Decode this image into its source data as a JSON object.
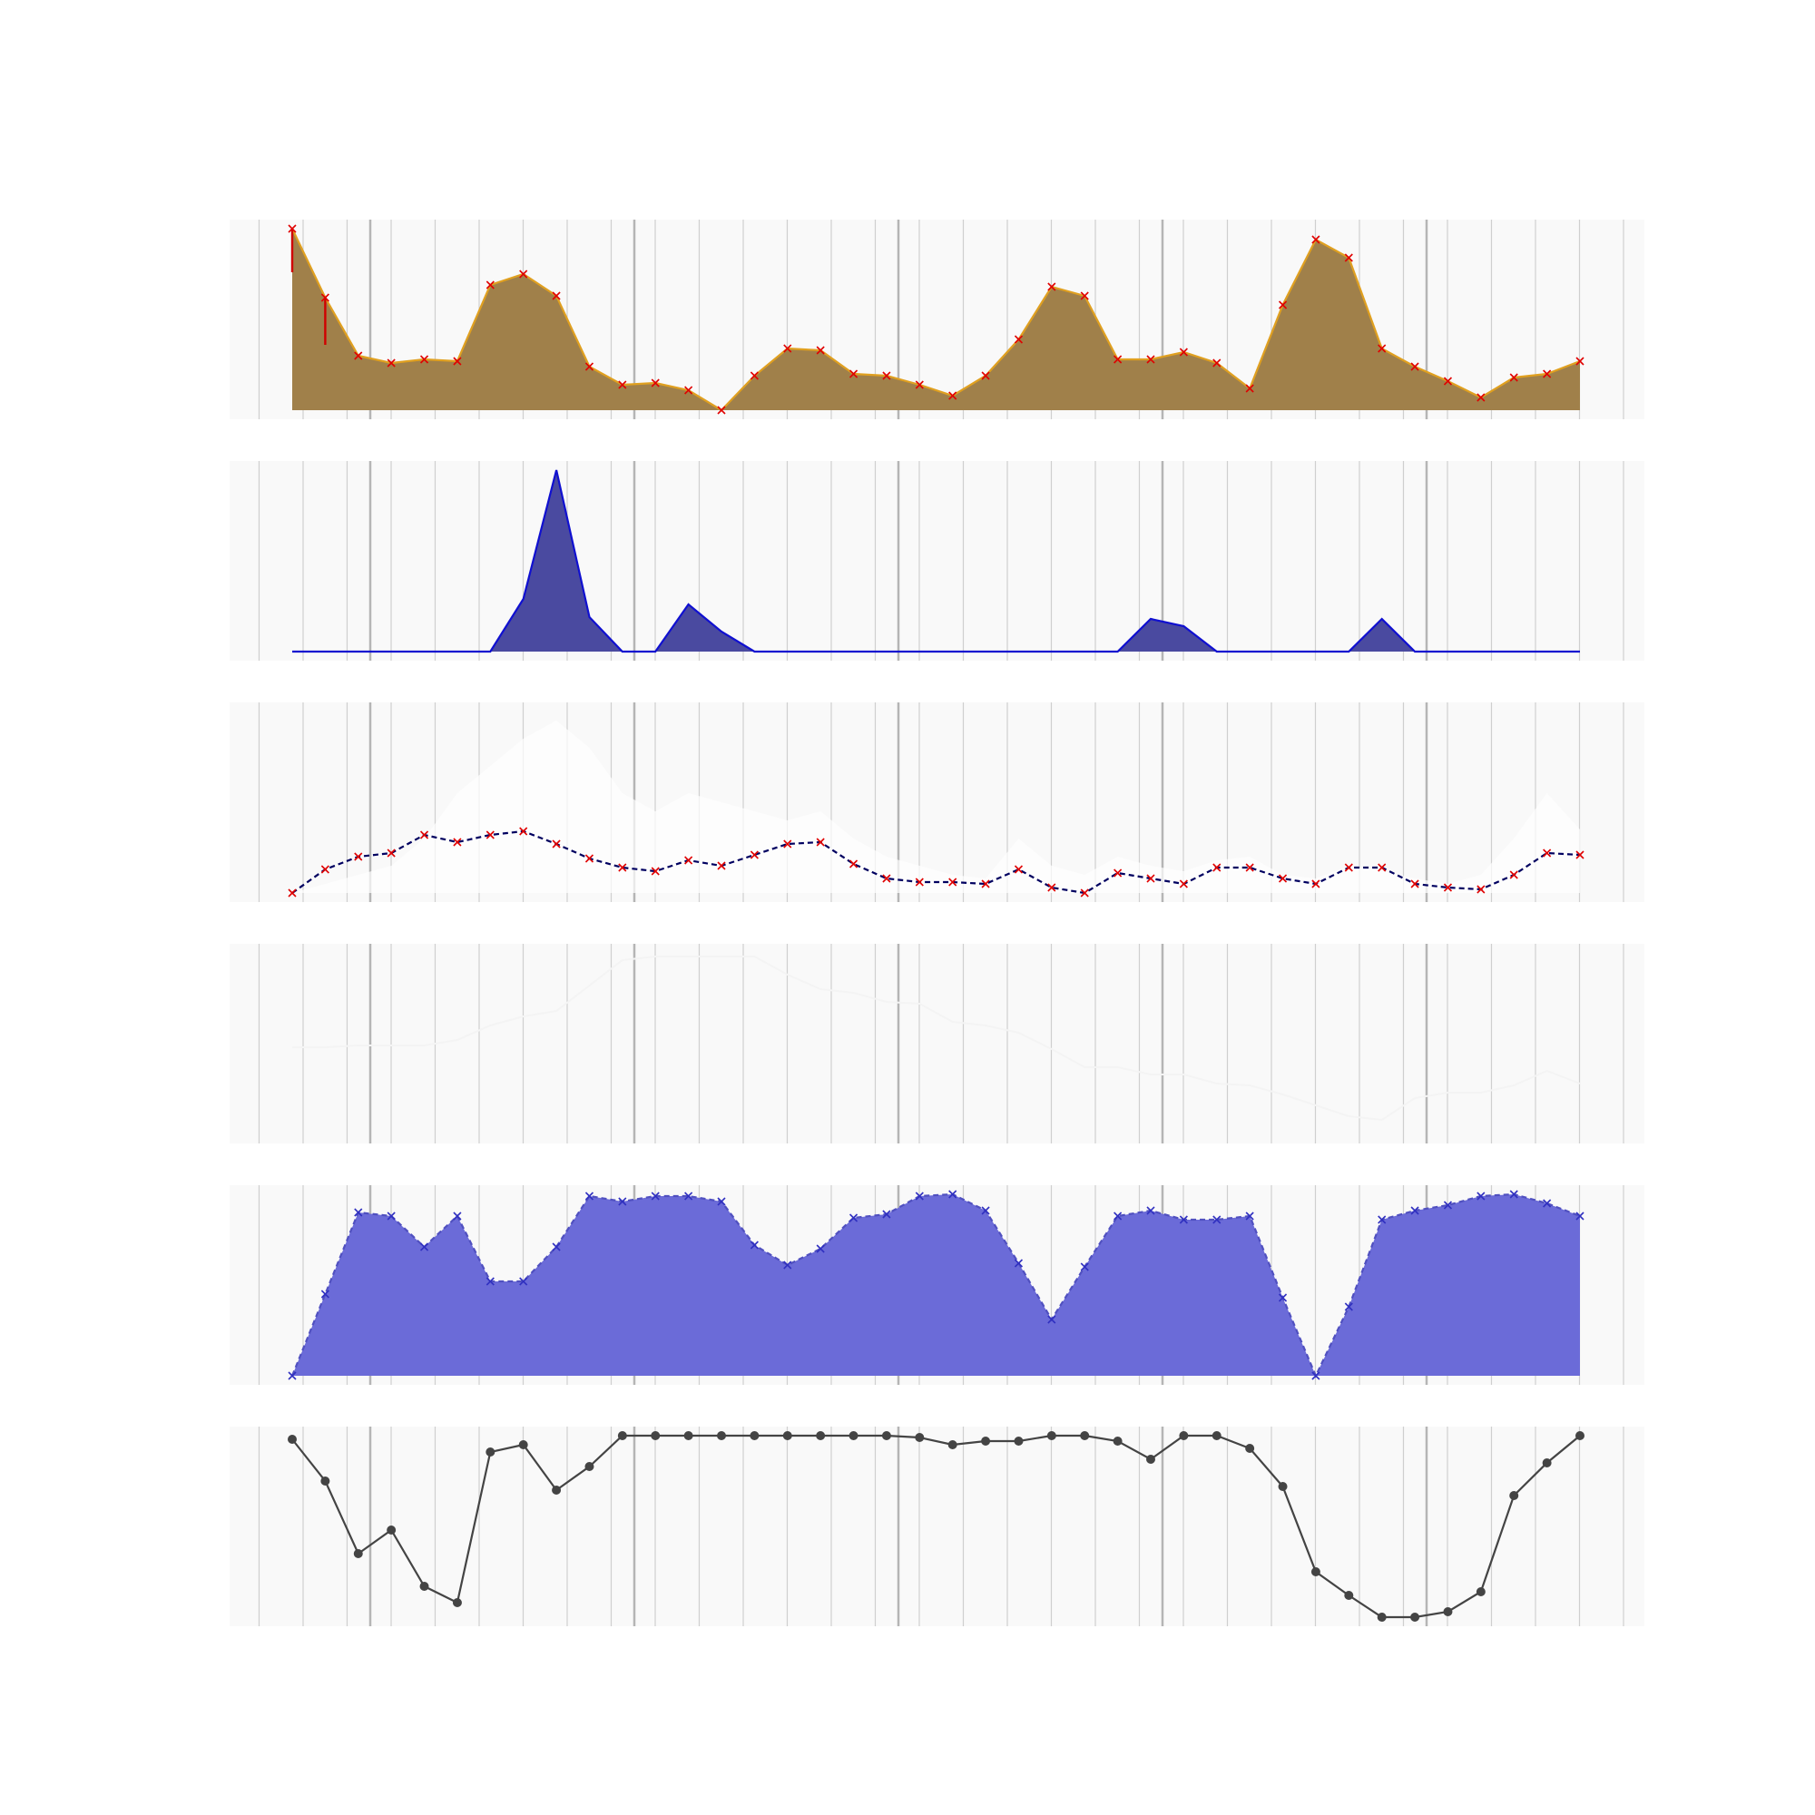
{
  "chart_data": [
    {
      "type": "area",
      "fill": "#a0804a",
      "line_color": "#e0a020",
      "marker_color": "#e00000",
      "marker": "x",
      "grid": true,
      "ylim": [
        0,
        1
      ],
      "error_bars": [
        {
          "index": 0,
          "low": 0.76,
          "high": 1.0
        },
        {
          "index": 1,
          "low": 0.36,
          "high": 0.62
        }
      ],
      "values": [
        1.0,
        0.62,
        0.3,
        0.26,
        0.28,
        0.27,
        0.69,
        0.75,
        0.63,
        0.24,
        0.14,
        0.15,
        0.11,
        0.0,
        0.19,
        0.34,
        0.33,
        0.2,
        0.19,
        0.14,
        0.08,
        0.19,
        0.39,
        0.68,
        0.63,
        0.28,
        0.28,
        0.32,
        0.26,
        0.12,
        0.58,
        0.94,
        0.84,
        0.34,
        0.24,
        0.16,
        0.07,
        0.18,
        0.2,
        0.27
      ]
    },
    {
      "type": "area",
      "fill": "#4a4aa0",
      "line_color": "#1010d0",
      "grid": true,
      "ylim": [
        0,
        1
      ],
      "values": [
        0,
        0,
        0,
        0,
        0,
        0,
        0,
        0.29,
        1.0,
        0.19,
        0,
        0,
        0.26,
        0.11,
        0,
        0,
        0,
        0,
        0,
        0,
        0,
        0,
        0,
        0,
        0,
        0,
        0.18,
        0.14,
        0,
        0,
        0,
        0,
        0,
        0.18,
        0,
        0,
        0,
        0,
        0,
        0
      ]
    },
    {
      "type": "line",
      "line_color": "#000060",
      "line_style": "dashed",
      "marker_color": "#e00000",
      "marker": "x",
      "grid": true,
      "ylim": [
        0,
        1
      ],
      "values": [
        0.0,
        0.13,
        0.2,
        0.22,
        0.32,
        0.28,
        0.32,
        0.34,
        0.27,
        0.19,
        0.14,
        0.12,
        0.18,
        0.15,
        0.21,
        0.27,
        0.28,
        0.16,
        0.08,
        0.06,
        0.06,
        0.05,
        0.13,
        0.03,
        0.0,
        0.11,
        0.08,
        0.05,
        0.14,
        0.14,
        0.08,
        0.05,
        0.14,
        0.14,
        0.05,
        0.03,
        0.02,
        0.1,
        0.22,
        0.21
      ],
      "faint_series": [
        0.0,
        0.05,
        0.1,
        0.15,
        0.3,
        0.55,
        0.7,
        0.85,
        0.95,
        0.8,
        0.55,
        0.45,
        0.55,
        0.5,
        0.45,
        0.4,
        0.45,
        0.3,
        0.2,
        0.15,
        0.1,
        0.08,
        0.3,
        0.15,
        0.1,
        0.2,
        0.15,
        0.12,
        0.18,
        0.2,
        0.1,
        0.08,
        0.15,
        0.12,
        0.08,
        0.05,
        0.1,
        0.3,
        0.55,
        0.35
      ]
    },
    {
      "type": "line",
      "line_color": "#f4f4f4",
      "grid": true,
      "ylim": [
        0,
        1
      ],
      "values": [
        0.48,
        0.48,
        0.49,
        0.49,
        0.49,
        0.52,
        0.6,
        0.65,
        0.68,
        0.82,
        0.96,
        0.98,
        0.98,
        0.98,
        0.98,
        0.88,
        0.8,
        0.78,
        0.73,
        0.72,
        0.62,
        0.6,
        0.56,
        0.47,
        0.37,
        0.37,
        0.33,
        0.33,
        0.28,
        0.27,
        0.22,
        0.16,
        0.1,
        0.08,
        0.2,
        0.23,
        0.23,
        0.27,
        0.35,
        0.28
      ]
    },
    {
      "type": "area",
      "fill": "#6b6bd8",
      "line_color": "#5050c0",
      "line_style": "dashed",
      "marker_color": "#3030c0",
      "marker": "x",
      "grid": true,
      "ylim": [
        0,
        1
      ],
      "values": [
        0.0,
        0.45,
        0.9,
        0.88,
        0.71,
        0.88,
        0.52,
        0.52,
        0.71,
        0.99,
        0.96,
        0.99,
        0.99,
        0.96,
        0.72,
        0.61,
        0.7,
        0.87,
        0.89,
        0.99,
        1.0,
        0.91,
        0.62,
        0.31,
        0.6,
        0.88,
        0.91,
        0.86,
        0.86,
        0.88,
        0.43,
        0.0,
        0.38,
        0.86,
        0.91,
        0.94,
        0.99,
        1.0,
        0.95,
        0.88
      ]
    },
    {
      "type": "line",
      "line_color": "#444444",
      "marker_color": "#444444",
      "marker": "o",
      "grid": true,
      "ylim": [
        0,
        1
      ],
      "values": [
        0.98,
        0.75,
        0.35,
        0.48,
        0.17,
        0.08,
        0.91,
        0.95,
        0.7,
        0.83,
        1.0,
        1.0,
        1.0,
        1.0,
        1.0,
        1.0,
        1.0,
        1.0,
        1.0,
        0.99,
        0.95,
        0.97,
        0.97,
        1.0,
        1.0,
        0.97,
        0.87,
        1.0,
        1.0,
        0.93,
        0.72,
        0.25,
        0.12,
        0.0,
        0.0,
        0.03,
        0.14,
        0.67,
        0.85,
        1.0
      ]
    }
  ]
}
